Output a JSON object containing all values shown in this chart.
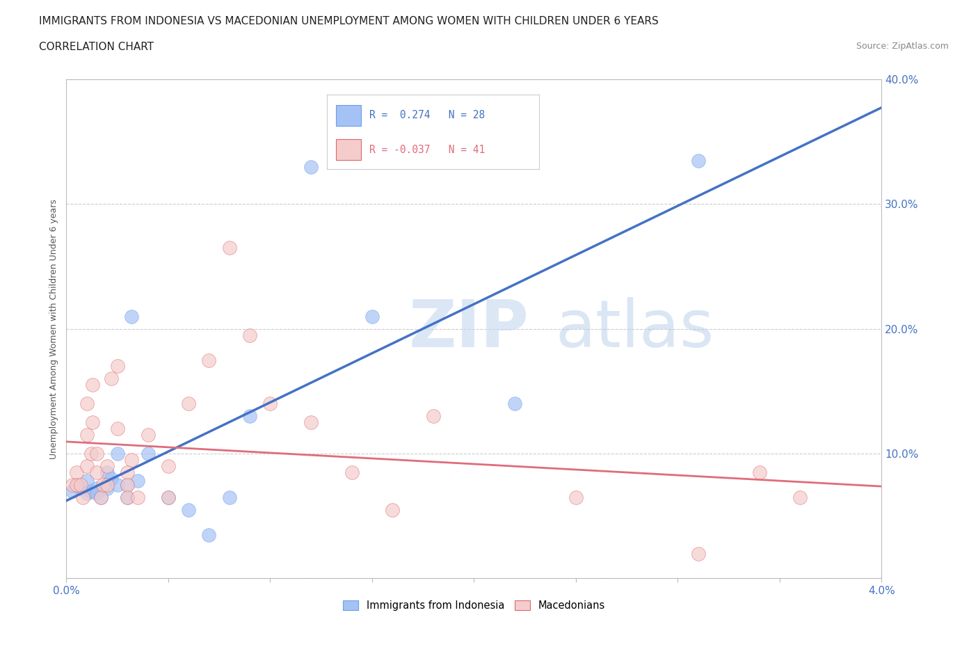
{
  "title": "IMMIGRANTS FROM INDONESIA VS MACEDONIAN UNEMPLOYMENT AMONG WOMEN WITH CHILDREN UNDER 6 YEARS",
  "subtitle": "CORRELATION CHART",
  "source": "Source: ZipAtlas.com",
  "ylabel": "Unemployment Among Women with Children Under 6 years",
  "xlim": [
    0.0,
    0.04
  ],
  "ylim": [
    0.0,
    0.4
  ],
  "xticks": [
    0.0,
    0.005,
    0.01,
    0.015,
    0.02,
    0.025,
    0.03,
    0.035,
    0.04
  ],
  "yticks": [
    0.0,
    0.1,
    0.2,
    0.3,
    0.4
  ],
  "blue_color": "#a4c2f4",
  "blue_edge_color": "#6d9eeb",
  "pink_color": "#f4cccc",
  "pink_edge_color": "#e06666",
  "blue_line_color": "#4472c4",
  "pink_line_color": "#e06c7a",
  "tick_label_color": "#4472c4",
  "blue_r": "0.274",
  "blue_n": "28",
  "pink_r": "-0.037",
  "pink_n": "41",
  "watermark_zip": "ZIP",
  "watermark_atlas": "atlas",
  "legend_label_blue": "Immigrants from Indonesia",
  "legend_label_pink": "Macedonians",
  "blue_points_x": [
    0.0003,
    0.0005,
    0.0007,
    0.001,
    0.001,
    0.0012,
    0.0015,
    0.0015,
    0.0017,
    0.002,
    0.002,
    0.0022,
    0.0025,
    0.0025,
    0.003,
    0.003,
    0.0032,
    0.0035,
    0.004,
    0.005,
    0.006,
    0.007,
    0.008,
    0.009,
    0.012,
    0.015,
    0.022,
    0.031
  ],
  "blue_points_y": [
    0.07,
    0.075,
    0.072,
    0.068,
    0.078,
    0.07,
    0.072,
    0.068,
    0.065,
    0.085,
    0.072,
    0.08,
    0.1,
    0.075,
    0.065,
    0.075,
    0.21,
    0.078,
    0.1,
    0.065,
    0.055,
    0.035,
    0.065,
    0.13,
    0.33,
    0.21,
    0.14,
    0.335
  ],
  "pink_points_x": [
    0.0003,
    0.0005,
    0.0005,
    0.0007,
    0.0008,
    0.001,
    0.001,
    0.001,
    0.0012,
    0.0013,
    0.0013,
    0.0015,
    0.0015,
    0.0017,
    0.0018,
    0.002,
    0.002,
    0.0022,
    0.0025,
    0.0025,
    0.003,
    0.003,
    0.003,
    0.0032,
    0.0035,
    0.004,
    0.005,
    0.005,
    0.006,
    0.007,
    0.008,
    0.009,
    0.01,
    0.012,
    0.014,
    0.016,
    0.018,
    0.025,
    0.031,
    0.034,
    0.036
  ],
  "pink_points_y": [
    0.075,
    0.085,
    0.075,
    0.075,
    0.065,
    0.14,
    0.115,
    0.09,
    0.1,
    0.125,
    0.155,
    0.085,
    0.1,
    0.065,
    0.075,
    0.09,
    0.075,
    0.16,
    0.17,
    0.12,
    0.085,
    0.075,
    0.065,
    0.095,
    0.065,
    0.115,
    0.09,
    0.065,
    0.14,
    0.175,
    0.265,
    0.195,
    0.14,
    0.125,
    0.085,
    0.055,
    0.13,
    0.065,
    0.02,
    0.085,
    0.065
  ],
  "grid_color": "#cccccc",
  "background_color": "#ffffff",
  "axis_color": "#bbbbbb",
  "title_fontsize": 11,
  "subtitle_fontsize": 11,
  "source_fontsize": 9,
  "axis_label_fontsize": 9,
  "tick_fontsize": 11
}
